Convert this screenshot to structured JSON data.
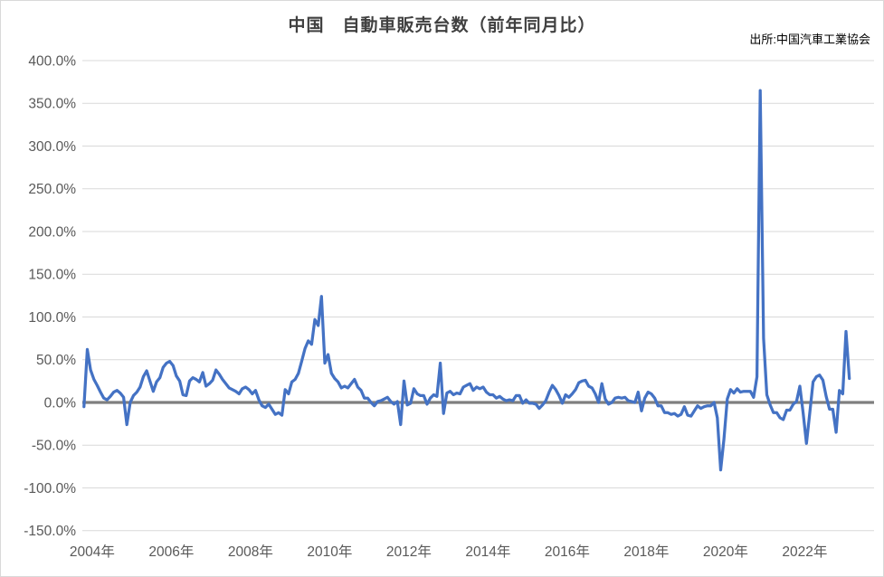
{
  "chart_data": {
    "type": "line",
    "title": "中国　自動車販売台数（前年同月比）",
    "source": "出所:中国汽車工業協会",
    "unit": "%",
    "frequency": "monthly",
    "start_month": "2004-01",
    "end_month": "2023-05",
    "x_slot_count": 240,
    "ylim": [
      -150,
      400
    ],
    "grid": "horizontal",
    "legend": "none",
    "y_ticks": [
      {
        "value": 400,
        "label": "400.0%"
      },
      {
        "value": 350,
        "label": "350.0%"
      },
      {
        "value": 300,
        "label": "300.0%"
      },
      {
        "value": 250,
        "label": "250.0%"
      },
      {
        "value": 200,
        "label": "200.0%"
      },
      {
        "value": 150,
        "label": "150.0%"
      },
      {
        "value": 100,
        "label": "100.0%"
      },
      {
        "value": 50,
        "label": "50.0%"
      },
      {
        "value": 0,
        "label": "0.0%"
      },
      {
        "value": -50,
        "label": "-50.0%"
      },
      {
        "value": -100,
        "label": "-100.0%"
      },
      {
        "value": -150,
        "label": "-150.0%"
      }
    ],
    "x_tick_labels": [
      "2004年",
      "2006年",
      "2008年",
      "2010年",
      "2012年",
      "2014年",
      "2016年",
      "2018年",
      "2020年",
      "2022年"
    ],
    "values": [
      -5,
      62,
      38,
      27,
      20,
      12,
      5,
      3,
      7,
      12,
      14,
      11,
      6,
      -26,
      0,
      8,
      12,
      18,
      30,
      37,
      25,
      13,
      24,
      29,
      41,
      46,
      48,
      43,
      31,
      25,
      9,
      8,
      25,
      29,
      27,
      24,
      35,
      19,
      22,
      26,
      38,
      33,
      27,
      22,
      17,
      15,
      13,
      10,
      16,
      18,
      15,
      10,
      14,
      3,
      -4,
      -6,
      -2,
      -8,
      -14,
      -12,
      -15,
      15,
      10,
      24,
      27,
      34,
      48,
      63,
      72,
      68,
      97,
      90,
      124,
      46,
      56,
      34,
      28,
      24,
      17,
      19,
      17,
      22,
      27,
      18,
      14,
      5,
      5,
      0,
      -4,
      1,
      2,
      4,
      6,
      1,
      -2,
      1,
      -26,
      25,
      -3,
      -1,
      16,
      10,
      8,
      8,
      -2,
      5,
      9,
      7,
      46,
      -13,
      11,
      13,
      9,
      11,
      10,
      18,
      20,
      22,
      14,
      18,
      16,
      18,
      12,
      9,
      9,
      5,
      7,
      4,
      2,
      3,
      2,
      8,
      8,
      -1,
      3,
      -1,
      -1,
      -2,
      -7,
      -3,
      2,
      12,
      20,
      15,
      8,
      -1,
      9,
      6,
      10,
      15,
      23,
      25,
      26,
      19,
      17,
      10,
      0,
      22,
      4,
      -2,
      0,
      5,
      6,
      5,
      6,
      2,
      1,
      0,
      12,
      -10,
      5,
      12,
      10,
      5,
      -4,
      -4,
      -12,
      -12,
      -14,
      -13,
      -16,
      -14,
      -5,
      -15,
      -16,
      -10,
      -4,
      -7,
      -5,
      -4,
      -4,
      0,
      -18,
      -79,
      -43,
      4,
      15,
      11,
      16,
      12,
      13,
      13,
      13,
      6,
      30,
      365,
      75,
      9,
      -3,
      -12,
      -12,
      -18,
      -20,
      -9,
      -9,
      -2,
      1,
      19,
      -12,
      -48,
      -13,
      24,
      30,
      32,
      26,
      7,
      -8,
      -8,
      -35,
      14,
      10,
      83,
      28
    ],
    "colors": {
      "line": "#4472C4",
      "gridline": "#D9D9D9",
      "zero_line": "#7F7F7F",
      "axis_text": "#595959",
      "title_text": "#404040"
    }
  }
}
